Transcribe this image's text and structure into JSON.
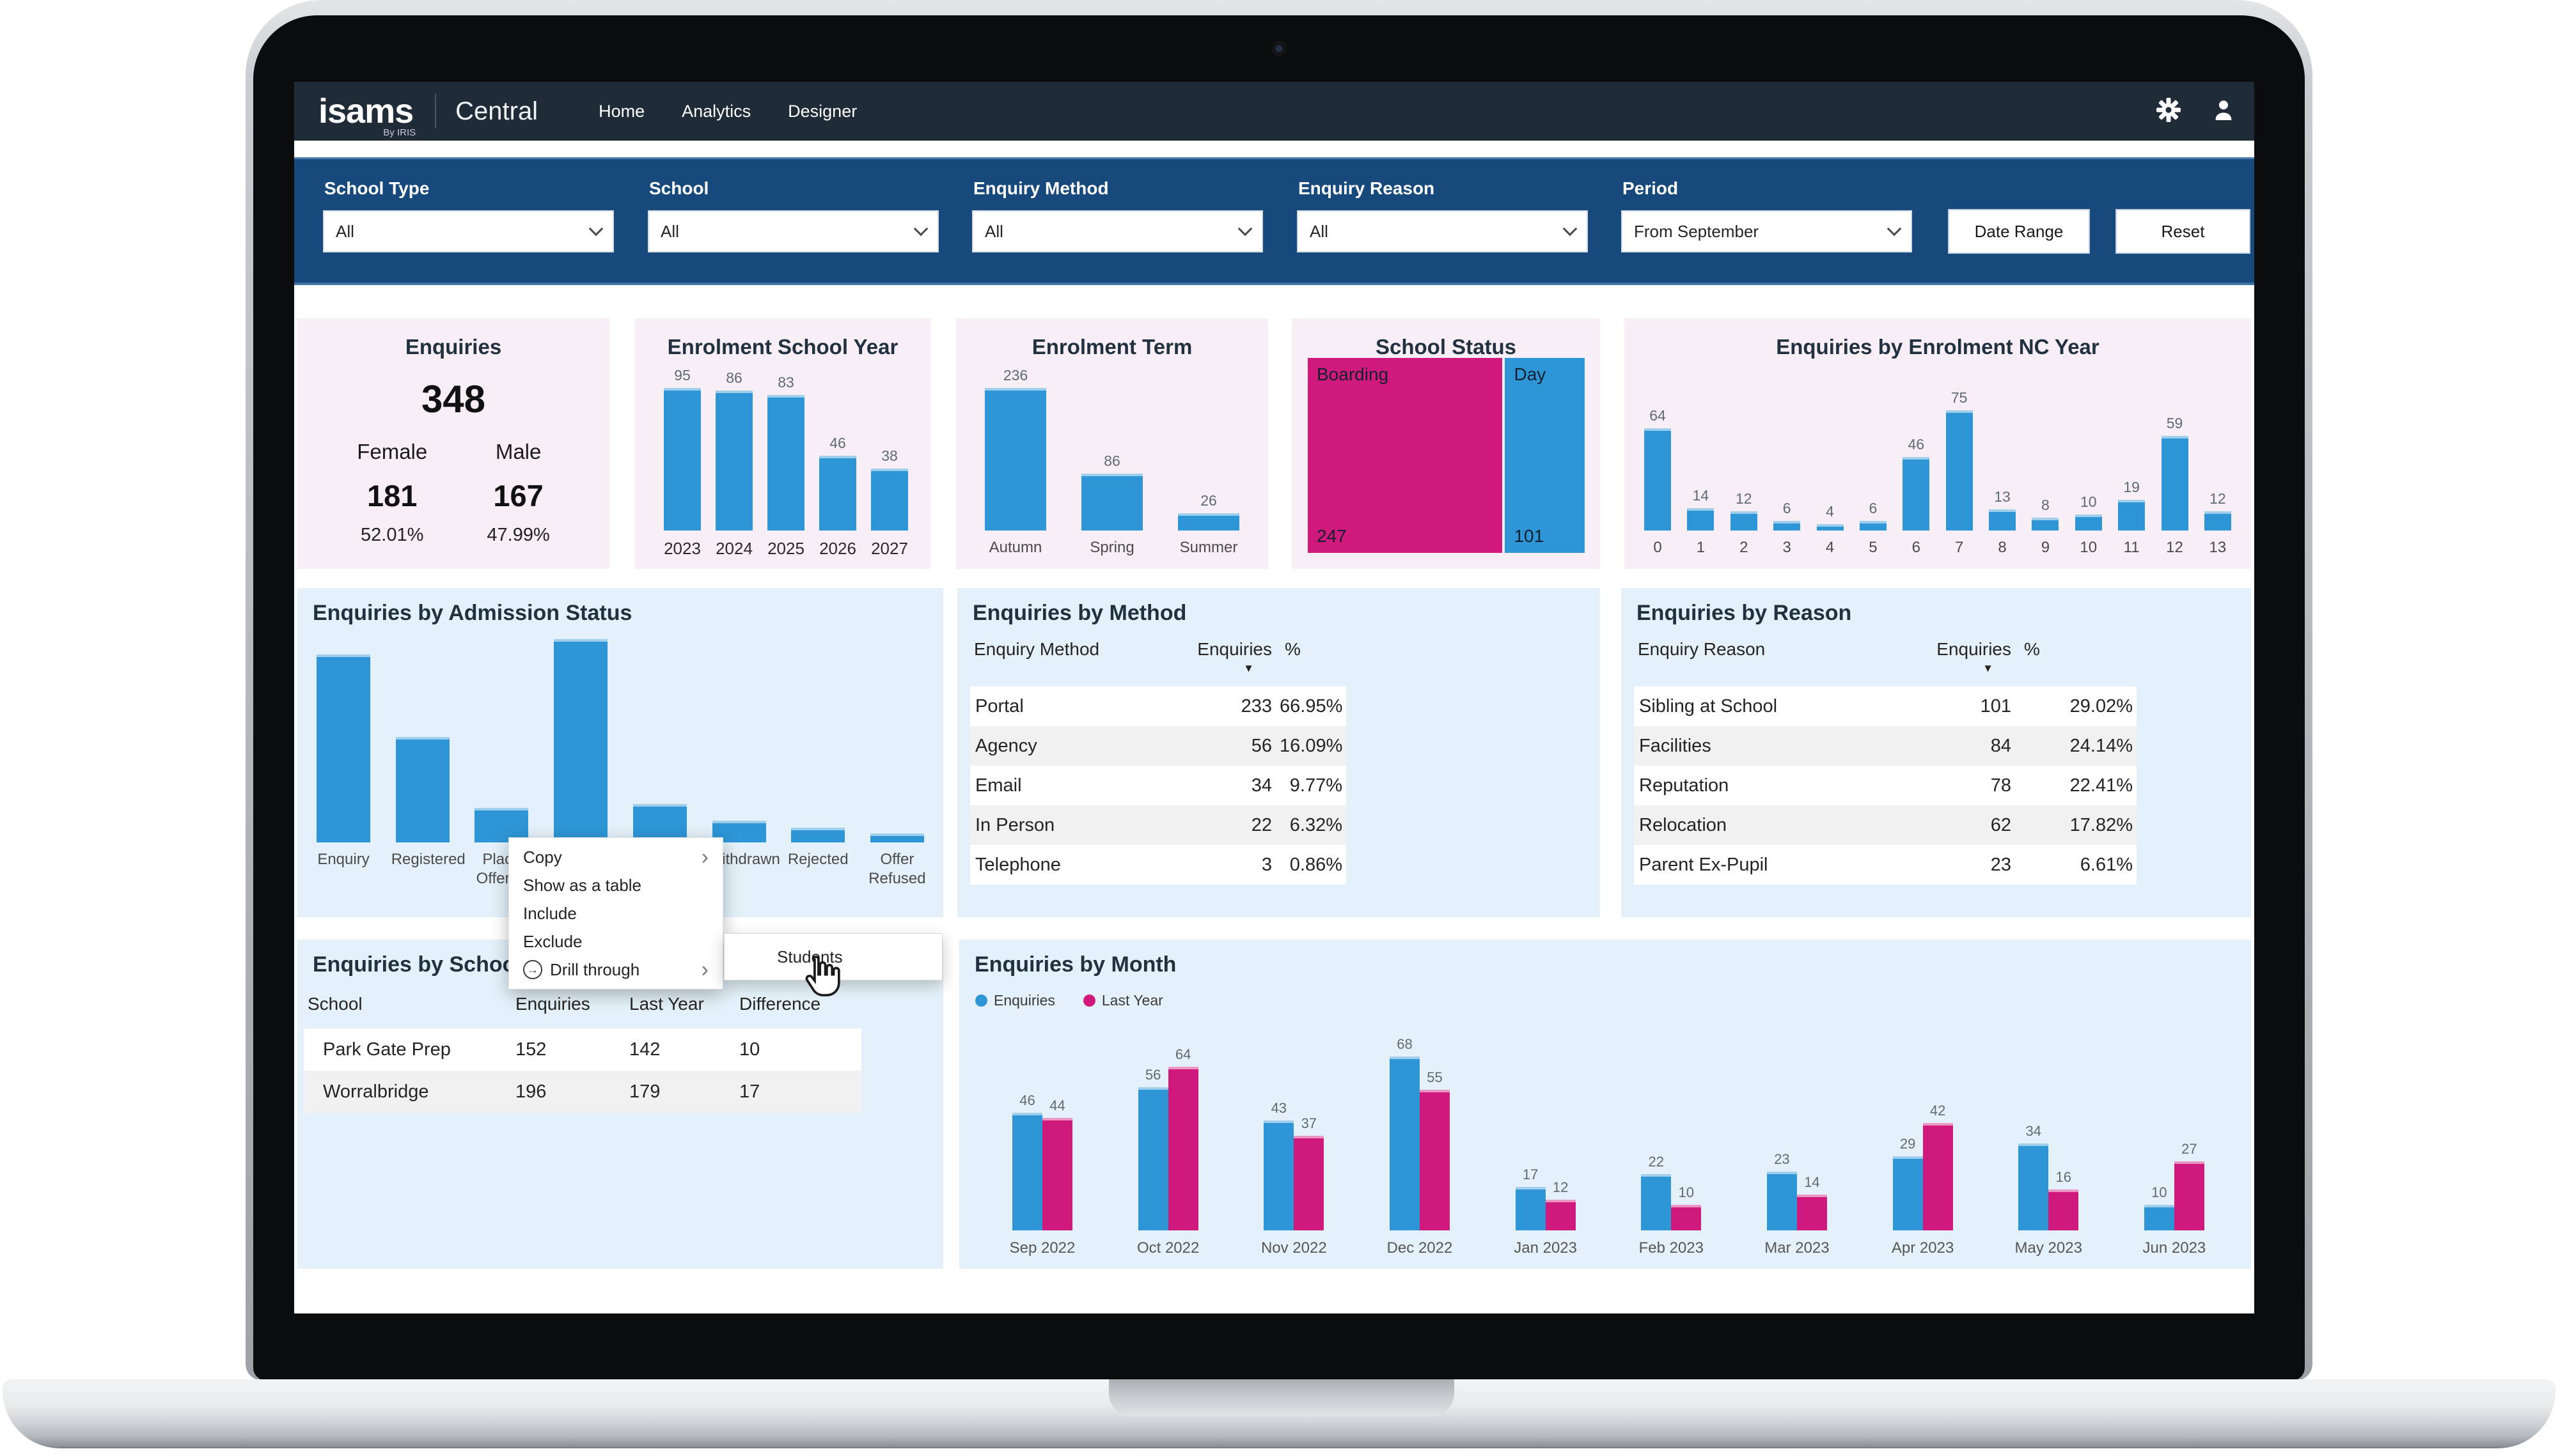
{
  "navbar": {
    "logo": "isams",
    "logo_sub": "By IRIS",
    "product": "Central",
    "links": [
      "Home",
      "Analytics",
      "Designer"
    ]
  },
  "icons": {
    "navbar": [
      "gear-icon",
      "user-icon"
    ],
    "dropdown": "chevron-down-icon",
    "submenu_arrow": "chevron-right-icon",
    "drill_through": "drill-through-icon",
    "sort_descending": "triangle-down-icon",
    "pointer": "hand-pointer-icon"
  },
  "colors": {
    "nav_bar": "#1f2b36",
    "filter_bar": "#17497c",
    "card_pink": "#f7eef6",
    "card_blue": "#e4f1fa",
    "accent_blue": "#2e96d6",
    "accent_magenta": "#d0197d"
  },
  "filterbar": {
    "fields": [
      {
        "label": "School Type",
        "value": "All"
      },
      {
        "label": "School",
        "value": "All"
      },
      {
        "label": "Enquiry Method",
        "value": "All"
      },
      {
        "label": "Enquiry Reason",
        "value": "All"
      },
      {
        "label": "Period",
        "value": "From September"
      }
    ],
    "date_range": "Date Range",
    "reset": "Reset"
  },
  "kpi": {
    "title": "Enquiries",
    "total": "348",
    "female_label": "Female",
    "female_value": "181",
    "female_pct": "52.01%",
    "male_label": "Male",
    "male_value": "167",
    "male_pct": "47.99%"
  },
  "context_menu": {
    "items": [
      "Copy",
      "Show as a table",
      "Include",
      "Exclude",
      "Drill through"
    ],
    "submenu_item": "Students"
  },
  "chart_data": [
    {
      "id": "enrolment_school_year",
      "type": "bar",
      "title": "Enrolment School Year",
      "categories": [
        "2023",
        "2024",
        "2025",
        "2026",
        "2027"
      ],
      "values": [
        95,
        86,
        83,
        46,
        38
      ]
    },
    {
      "id": "enrolment_term",
      "type": "bar",
      "title": "Enrolment Term",
      "categories": [
        "Autumn",
        "Spring",
        "Summer"
      ],
      "values": [
        236,
        86,
        26
      ]
    },
    {
      "id": "school_status",
      "type": "treemap",
      "title": "School Status",
      "items": [
        {
          "label": "Boarding",
          "value": 247,
          "color": "#d0197d"
        },
        {
          "label": "Day",
          "value": 101,
          "color": "#2e96d6"
        }
      ]
    },
    {
      "id": "nc_year",
      "type": "bar",
      "title": "Enquiries by Enrolment NC Year",
      "categories": [
        "0",
        "1",
        "2",
        "3",
        "4",
        "5",
        "6",
        "7",
        "8",
        "9",
        "10",
        "11",
        "12",
        "13"
      ],
      "values": [
        64,
        14,
        12,
        6,
        4,
        6,
        46,
        75,
        13,
        8,
        10,
        19,
        59,
        12
      ]
    },
    {
      "id": "admission_status",
      "type": "bar",
      "title": "Enquiries by Admission Status",
      "categories": [
        "Enquiry",
        "Registered",
        "Place Offered",
        "",
        "",
        "Withdrawn",
        "Rejected",
        "Offer Refused"
      ],
      "values": [
        103,
        58,
        19,
        120,
        21,
        12,
        8,
        5
      ],
      "values_estimated": true,
      "data_labels": false
    },
    {
      "id": "method",
      "type": "table",
      "title": "Enquiries by Method",
      "columns": [
        "Enquiry Method",
        "Enquiries",
        "%"
      ],
      "sort_column": "Enquiries",
      "rows": [
        [
          "Portal",
          "233",
          "66.95%"
        ],
        [
          "Agency",
          "56",
          "16.09%"
        ],
        [
          "Email",
          "34",
          "9.77%"
        ],
        [
          "In Person",
          "22",
          "6.32%"
        ],
        [
          "Telephone",
          "3",
          "0.86%"
        ]
      ]
    },
    {
      "id": "reason",
      "type": "table",
      "title": "Enquiries by Reason",
      "columns": [
        "Enquiry Reason",
        "Enquiries",
        "%"
      ],
      "sort_column": "Enquiries",
      "rows": [
        [
          "Sibling at School",
          "101",
          "29.02%"
        ],
        [
          "Facilities",
          "84",
          "24.14%"
        ],
        [
          "Reputation",
          "78",
          "22.41%"
        ],
        [
          "Relocation",
          "62",
          "17.82%"
        ],
        [
          "Parent Ex-Pupil",
          "23",
          "6.61%"
        ]
      ]
    },
    {
      "id": "school",
      "type": "table",
      "title": "Enquiries by School",
      "columns": [
        "School",
        "Enquiries",
        "Last Year",
        "Difference"
      ],
      "rows": [
        [
          "Park Gate Prep",
          "152",
          "142",
          "10"
        ],
        [
          "Worralbridge",
          "196",
          "179",
          "17"
        ]
      ]
    },
    {
      "id": "month",
      "type": "bar",
      "title": "Enquiries by Month",
      "categories": [
        "Sep 2022",
        "Oct 2022",
        "Nov 2022",
        "Dec 2022",
        "Jan 2023",
        "Feb 2023",
        "Mar 2023",
        "Apr 2023",
        "May 2023",
        "Jun 2023"
      ],
      "legend": [
        "Enquiries",
        "Last Year"
      ],
      "series": [
        {
          "name": "Enquiries",
          "color": "#2e96d6",
          "values": [
            46,
            56,
            43,
            68,
            17,
            22,
            23,
            29,
            34,
            10
          ]
        },
        {
          "name": "Last Year",
          "color": "#d0197d",
          "values": [
            44,
            64,
            37,
            55,
            12,
            10,
            14,
            42,
            16,
            27
          ]
        }
      ]
    }
  ]
}
